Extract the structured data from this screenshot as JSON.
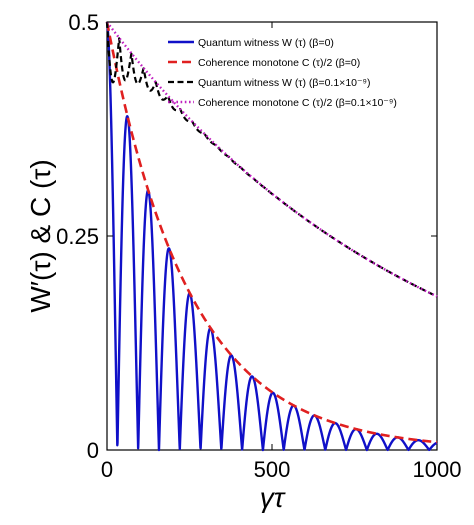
{
  "chart_data": {
    "type": "line",
    "xlabel": "γτ",
    "ylabel": "W′(τ) & C (τ)",
    "xlim": [
      0,
      1000
    ],
    "ylim": [
      0,
      0.5
    ],
    "xticks": [
      0,
      500,
      1000
    ],
    "xtick_labels": [
      "0",
      "500",
      "1000"
    ],
    "yticks": [
      0,
      0.25,
      0.5
    ],
    "ytick_labels": [
      "0",
      "0.25",
      "0.5"
    ],
    "grid": false,
    "legend_position": "top-right",
    "series": [
      {
        "name": "Quantum witness   W (τ) (β=0)",
        "color": "#1010c8",
        "style": "solid",
        "function": "0.5*exp(-0.004*x)*|cos(pi*x/63)|",
        "x": [
          0,
          31.5,
          63,
          94.5,
          126,
          157.5,
          189,
          220.5,
          252,
          283.5,
          315,
          346.5,
          378,
          409.5,
          441,
          472.5,
          504,
          535.5,
          567,
          598.5,
          630,
          661.5,
          693,
          724.5,
          756,
          787.5,
          819,
          850.5,
          882,
          913.5,
          945,
          976.5,
          1000
        ],
        "y": [
          0.5,
          0,
          0.389,
          0,
          0.302,
          0,
          0.235,
          0,
          0.183,
          0,
          0.142,
          0,
          0.11,
          0,
          0.086,
          0,
          0.067,
          0,
          0.052,
          0,
          0.04,
          0,
          0.031,
          0,
          0.024,
          0,
          0.019,
          0,
          0.015,
          0,
          0.011,
          0,
          0.009
        ]
      },
      {
        "name": "Coherence monotone   C (τ)/2 (β=0)",
        "color": "#e02020",
        "style": "dashed",
        "function": "0.5*exp(-0.004*x)",
        "x": [
          0,
          100,
          200,
          300,
          400,
          500,
          600,
          700,
          800,
          900,
          1000
        ],
        "y": [
          0.5,
          0.335,
          0.225,
          0.151,
          0.101,
          0.068,
          0.045,
          0.03,
          0.02,
          0.014,
          0.009
        ]
      },
      {
        "name": "Quantum witness   W (τ) (β=0.1×10⁻⁹)",
        "color": "#000000",
        "style": "dashed",
        "function": "C(x)/2 - 0.075*exp(-x/90)*|sin(pi*x/37)|",
        "x": [
          0,
          18.5,
          37,
          55.5,
          74,
          92.5,
          111,
          129.5,
          148,
          166.5,
          200,
          300,
          500,
          700,
          1000
        ],
        "y": [
          0.5,
          0.418,
          0.476,
          0.41,
          0.462,
          0.415,
          0.447,
          0.415,
          0.432,
          0.41,
          0.402,
          0.364,
          0.298,
          0.244,
          0.179
        ]
      },
      {
        "name": "Coherence monotone   C (τ)/2 (β=0.1×10⁻⁹)",
        "color": "#c020c0",
        "style": "dotted",
        "function": "0.5*exp(-0.001025*x)",
        "x": [
          0,
          100,
          200,
          300,
          400,
          500,
          600,
          700,
          800,
          900,
          1000
        ],
        "y": [
          0.5,
          0.451,
          0.407,
          0.368,
          0.332,
          0.299,
          0.27,
          0.244,
          0.22,
          0.199,
          0.179
        ]
      }
    ]
  }
}
